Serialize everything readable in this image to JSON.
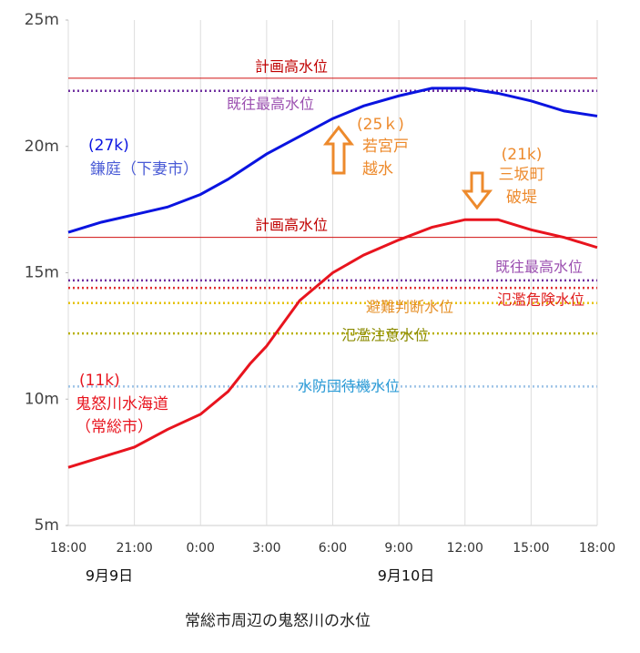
{
  "chart_data": {
    "type": "line",
    "title": "常総市周辺の鬼怒川の水位",
    "date_labels": [
      "9月9日",
      "9月10日"
    ],
    "xlim": [
      0,
      24
    ],
    "xticks": [
      {
        "value": 0,
        "label": "18:00"
      },
      {
        "value": 3,
        "label": "21:00"
      },
      {
        "value": 6,
        "label": "0:00"
      },
      {
        "value": 9,
        "label": "3:00"
      },
      {
        "value": 12,
        "label": "6:00"
      },
      {
        "value": 15,
        "label": "9:00"
      },
      {
        "value": 18,
        "label": "12:00"
      },
      {
        "value": 21,
        "label": "15:00"
      },
      {
        "value": 24,
        "label": "18:00"
      }
    ],
    "ylim": [
      5,
      25
    ],
    "yticks": [
      {
        "value": 5,
        "label": "5m"
      },
      {
        "value": 10,
        "label": "10m"
      },
      {
        "value": 15,
        "label": "15m"
      },
      {
        "value": 20,
        "label": "20m"
      },
      {
        "value": 25,
        "label": "25m"
      }
    ],
    "grid": true,
    "series": [
      {
        "color": "#0a14e0",
        "x": [
          0,
          1.5,
          3,
          4.5,
          6,
          7.25,
          9,
          10.5,
          12,
          13.4,
          15,
          16.5,
          18,
          19.5,
          21,
          22.5,
          24
        ],
        "values": [
          16.6,
          17.0,
          17.3,
          17.6,
          18.1,
          18.7,
          19.7,
          20.4,
          21.1,
          21.6,
          22.0,
          22.3,
          22.3,
          22.1,
          21.8,
          21.4,
          21.2
        ]
      },
      {
        "color": "#e8141e",
        "x": [
          0,
          1.5,
          3,
          4.5,
          6,
          7.25,
          8.25,
          9,
          10.5,
          12,
          13.4,
          15,
          16.5,
          18,
          19,
          19.5,
          21,
          22.5,
          24
        ],
        "values": [
          7.3,
          7.7,
          8.1,
          8.8,
          9.4,
          10.3,
          11.4,
          12.1,
          13.9,
          15.0,
          15.7,
          16.3,
          16.8,
          17.1,
          17.1,
          17.1,
          16.7,
          16.4,
          16.0
        ]
      }
    ],
    "reference_lines": [
      {
        "label": "計画高水位",
        "value": 22.7,
        "color": "#d01010",
        "label_color": "#c00000",
        "style": "solid"
      },
      {
        "label": "既往最高水位",
        "value": 22.2,
        "color": "#7030a0",
        "label_color": "#9b4fb0",
        "style": "dotted"
      },
      {
        "label": "計画高水位",
        "value": 16.4,
        "color": "#d01010",
        "label_color": "#c00000",
        "style": "solid"
      },
      {
        "label": "既往最高水位",
        "value": 14.7,
        "color": "#7030a0",
        "label_color": "#9b4fb0",
        "style": "dotted"
      },
      {
        "label": "氾濫危険水位",
        "value": 14.4,
        "color": "#e03030",
        "label_color": "#e02020",
        "style": "dotted"
      },
      {
        "label": "避難判断水位",
        "value": 13.8,
        "color": "#e6c200",
        "label_color": "#e6912a",
        "style": "dotted"
      },
      {
        "label": "氾濫注意水位",
        "value": 12.6,
        "color": "#b8b000",
        "label_color": "#8b8b00",
        "style": "dotted"
      },
      {
        "label": "水防団待機水位",
        "value": 10.5,
        "color": "#9dc3e6",
        "label_color": "#2b9bd6",
        "style": "dotted"
      }
    ],
    "annotations": [
      {
        "lines": [
          "(27k)",
          "鎌庭（下妻市）"
        ],
        "colors": [
          "#0a14e0",
          "#4a5bd6"
        ]
      },
      {
        "lines": [
          "(25ｋ)",
          "若宮戸",
          "越水"
        ],
        "colors": [
          "#ed8a2c",
          "#ed8a2c",
          "#ed8a2c"
        ]
      },
      {
        "lines": [
          "(21k)",
          "三坂町",
          "破堤"
        ],
        "colors": [
          "#ed8a2c",
          "#ed8a2c",
          "#ed8a2c"
        ]
      },
      {
        "lines": [
          "(11k)",
          "鬼怒川水海道",
          "（常総市）"
        ],
        "colors": [
          "#e8141e",
          "#e8141e",
          "#e8141e"
        ]
      }
    ]
  }
}
